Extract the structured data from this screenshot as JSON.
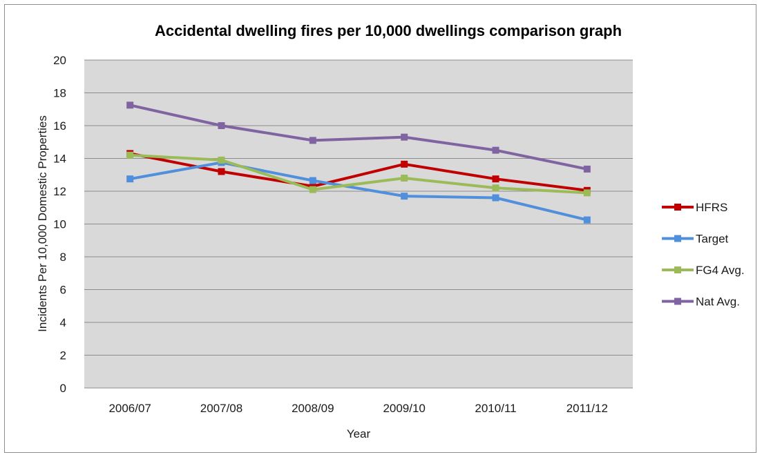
{
  "chart_data": {
    "type": "line",
    "title": "Accidental dwelling fires per 10,000 dwellings comparison graph",
    "xlabel": "Year",
    "ylabel": "Incidents Per 10,000 Domestic Properties",
    "categories": [
      "2006/07",
      "2007/08",
      "2008/09",
      "2009/10",
      "2010/11",
      "2011/12"
    ],
    "ylim": [
      0,
      20
    ],
    "yticks": [
      "0",
      "2",
      "4",
      "6",
      "8",
      "10",
      "12",
      "14",
      "16",
      "18",
      "20"
    ],
    "grid": true,
    "legend_position": "right",
    "series": [
      {
        "name": "HFRS",
        "color": "#c00000",
        "values": [
          14.3,
          13.2,
          12.3,
          13.65,
          12.75,
          12.05
        ]
      },
      {
        "name": "Target",
        "color": "#4f8fdb",
        "values": [
          12.75,
          13.75,
          12.65,
          11.7,
          11.6,
          10.25
        ]
      },
      {
        "name": "FG4 Avg.",
        "color": "#9bbb59",
        "values": [
          14.2,
          13.9,
          12.1,
          12.8,
          12.2,
          11.9
        ]
      },
      {
        "name": "Nat Avg.",
        "color": "#8064a2",
        "values": [
          17.25,
          16.0,
          15.1,
          15.3,
          14.5,
          13.35
        ]
      }
    ]
  }
}
